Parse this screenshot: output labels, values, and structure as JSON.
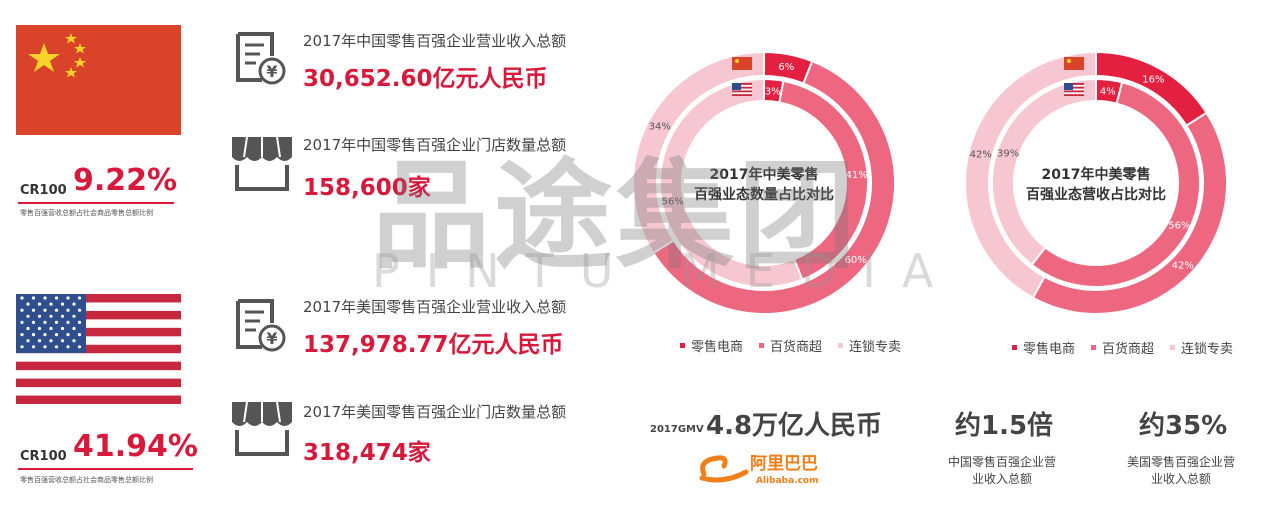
{
  "china": {
    "cr_label": "CR100",
    "cr_value": "9.22%",
    "cr_note": "零售百强营收总额占社会商品零售总额比例",
    "revenue_caption": "2017年中国零售百强企业营业收入总额",
    "revenue_value": "30,652.60亿元人民币",
    "stores_caption": "2017年中国零售百强企业门店数量总额",
    "stores_value": "158,600家"
  },
  "usa": {
    "cr_label": "CR100",
    "cr_value": "41.94%",
    "cr_note": "零售百强营收总额占社会商品零售总额比例",
    "revenue_caption": "2017年美国零售百强企业营业收入总额",
    "revenue_value": "137,978.77亿元人民币",
    "stores_caption": "2017年美国零售百强企业门店数量总额",
    "stores_value": "318,474家"
  },
  "watermark": {
    "text": "品途集团",
    "subtext": "PINTU MEDIA"
  },
  "colors": {
    "accent": "#d7193b",
    "ecommerce": "#e3203f",
    "department": "#ee6781",
    "chain": "#f7c7d1"
  },
  "chart_data": [
    {
      "type": "donut",
      "title": "2017年中美零售百强业态数量占比对比",
      "categories": [
        "零售电商",
        "百货商超",
        "连锁专卖"
      ],
      "series": [
        {
          "name": "China",
          "ring": "outer",
          "values": [
            6,
            60,
            34
          ]
        },
        {
          "name": "USA",
          "ring": "inner",
          "values": [
            3,
            41,
            56
          ]
        }
      ],
      "legend": [
        "零售电商",
        "百货商超",
        "连锁专卖"
      ],
      "legend_position": "bottom"
    },
    {
      "type": "donut",
      "title": "2017年中美零售百强业态营收占比对比",
      "categories": [
        "零售电商",
        "百货商超",
        "连锁专卖"
      ],
      "series": [
        {
          "name": "China",
          "ring": "outer",
          "values": [
            16,
            42,
            42
          ]
        },
        {
          "name": "USA",
          "ring": "inner",
          "values": [
            4,
            56,
            39
          ]
        }
      ],
      "legend": [
        "零售电商",
        "百货商超",
        "连锁专卖"
      ],
      "legend_position": "bottom"
    }
  ],
  "bottom": {
    "gmv_label": "2017GMV",
    "gmv_value": "4.8万亿人民币",
    "alibaba_cn": "阿里巴巴",
    "alibaba_en": "Alibaba.com",
    "ratio_value": "约1.5倍",
    "ratio_caption": "中国零售百强企业营业收入总额",
    "pct_value": "约35%",
    "pct_caption": "美国零售百强企业营业收入总额"
  }
}
